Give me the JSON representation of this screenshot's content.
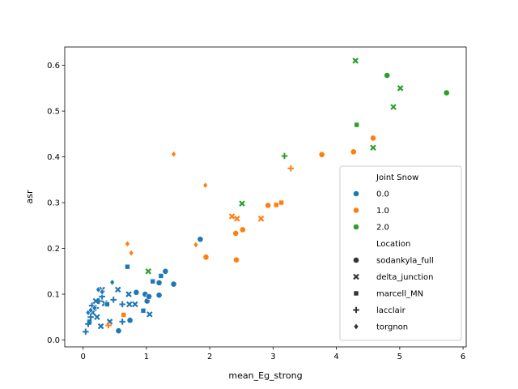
{
  "chart_data": {
    "type": "scatter",
    "xlabel": "mean_Eg_strong",
    "ylabel": "asr",
    "xlim": [
      -0.29,
      6.05
    ],
    "ylim": [
      -0.015,
      0.64
    ],
    "xticks": [
      "0",
      "1",
      "2",
      "3",
      "4",
      "5",
      "6"
    ],
    "xtick_values": [
      0,
      1,
      2,
      3,
      4,
      5,
      6
    ],
    "yticks": [
      "0.0",
      "0.1",
      "0.2",
      "0.3",
      "0.4",
      "0.5",
      "0.6"
    ],
    "ytick_values": [
      0,
      0.1,
      0.2,
      0.3,
      0.4,
      0.5,
      0.6
    ],
    "grid": false,
    "legend_position": "lower-right",
    "legend": {
      "hue_title": "Joint Snow",
      "hue_entries": [
        {
          "label": "0.0",
          "color": "#1f77b4"
        },
        {
          "label": "1.0",
          "color": "#ff7f0e"
        },
        {
          "label": "2.0",
          "color": "#2ca02c"
        }
      ],
      "style_title": "Location",
      "style_entries": [
        {
          "label": "sodankyla_full",
          "marker": "circle"
        },
        {
          "label": "delta_junction",
          "marker": "x"
        },
        {
          "label": "marcell_MN",
          "marker": "square"
        },
        {
          "label": "lacclair",
          "marker": "plus"
        },
        {
          "label": "torgnon",
          "marker": "diamond"
        }
      ]
    },
    "points": [
      {
        "x": 0.56,
        "y": 0.02,
        "hue": "0.0",
        "marker": "circle"
      },
      {
        "x": 0.74,
        "y": 0.043,
        "hue": "0.0",
        "marker": "circle"
      },
      {
        "x": 0.84,
        "y": 0.104,
        "hue": "0.0",
        "marker": "circle"
      },
      {
        "x": 0.98,
        "y": 0.1,
        "hue": "0.0",
        "marker": "circle"
      },
      {
        "x": 1.01,
        "y": 0.085,
        "hue": "0.0",
        "marker": "circle"
      },
      {
        "x": 1.04,
        "y": 0.095,
        "hue": "0.0",
        "marker": "circle"
      },
      {
        "x": 1.2,
        "y": 0.125,
        "hue": "0.0",
        "marker": "circle"
      },
      {
        "x": 1.2,
        "y": 0.098,
        "hue": "0.0",
        "marker": "circle"
      },
      {
        "x": 1.3,
        "y": 0.15,
        "hue": "0.0",
        "marker": "circle"
      },
      {
        "x": 1.43,
        "y": 0.122,
        "hue": "0.0",
        "marker": "circle"
      },
      {
        "x": 1.85,
        "y": 0.22,
        "hue": "0.0",
        "marker": "circle"
      },
      {
        "x": 1.94,
        "y": 0.181,
        "hue": "1.0",
        "marker": "circle"
      },
      {
        "x": 2.42,
        "y": 0.175,
        "hue": "1.0",
        "marker": "circle"
      },
      {
        "x": 2.41,
        "y": 0.233,
        "hue": "1.0",
        "marker": "circle"
      },
      {
        "x": 2.52,
        "y": 0.241,
        "hue": "1.0",
        "marker": "circle"
      },
      {
        "x": 2.92,
        "y": 0.294,
        "hue": "1.0",
        "marker": "circle"
      },
      {
        "x": 3.77,
        "y": 0.405,
        "hue": "1.0",
        "marker": "circle"
      },
      {
        "x": 4.27,
        "y": 0.411,
        "hue": "1.0",
        "marker": "circle"
      },
      {
        "x": 4.58,
        "y": 0.441,
        "hue": "1.0",
        "marker": "circle"
      },
      {
        "x": 4.8,
        "y": 0.578,
        "hue": "2.0",
        "marker": "circle"
      },
      {
        "x": 5.74,
        "y": 0.54,
        "hue": "2.0",
        "marker": "circle"
      },
      {
        "x": 0.15,
        "y": 0.06,
        "hue": "0.0",
        "marker": "x"
      },
      {
        "x": 0.2,
        "y": 0.085,
        "hue": "0.0",
        "marker": "x"
      },
      {
        "x": 0.22,
        "y": 0.05,
        "hue": "0.0",
        "marker": "x"
      },
      {
        "x": 0.28,
        "y": 0.03,
        "hue": "0.0",
        "marker": "x"
      },
      {
        "x": 0.3,
        "y": 0.11,
        "hue": "0.0",
        "marker": "x"
      },
      {
        "x": 0.34,
        "y": 0.08,
        "hue": "0.0",
        "marker": "x"
      },
      {
        "x": 0.42,
        "y": 0.04,
        "hue": "0.0",
        "marker": "x"
      },
      {
        "x": 0.55,
        "y": 0.11,
        "hue": "0.0",
        "marker": "x"
      },
      {
        "x": 0.72,
        "y": 0.1,
        "hue": "0.0",
        "marker": "x"
      },
      {
        "x": 0.73,
        "y": 0.078,
        "hue": "0.0",
        "marker": "x"
      },
      {
        "x": 0.82,
        "y": 0.078,
        "hue": "0.0",
        "marker": "x"
      },
      {
        "x": 1.05,
        "y": 0.056,
        "hue": "0.0",
        "marker": "x"
      },
      {
        "x": 2.35,
        "y": 0.27,
        "hue": "1.0",
        "marker": "x"
      },
      {
        "x": 2.43,
        "y": 0.265,
        "hue": "1.0",
        "marker": "x"
      },
      {
        "x": 2.81,
        "y": 0.265,
        "hue": "1.0",
        "marker": "x"
      },
      {
        "x": 2.51,
        "y": 0.298,
        "hue": "2.0",
        "marker": "x"
      },
      {
        "x": 1.03,
        "y": 0.15,
        "hue": "2.0",
        "marker": "x"
      },
      {
        "x": 4.3,
        "y": 0.61,
        "hue": "2.0",
        "marker": "x"
      },
      {
        "x": 5.01,
        "y": 0.55,
        "hue": "2.0",
        "marker": "x"
      },
      {
        "x": 4.9,
        "y": 0.509,
        "hue": "2.0",
        "marker": "x"
      },
      {
        "x": 4.58,
        "y": 0.42,
        "hue": "2.0",
        "marker": "x"
      },
      {
        "x": 0.1,
        "y": 0.04,
        "hue": "0.0",
        "marker": "square"
      },
      {
        "x": 0.38,
        "y": 0.078,
        "hue": "0.0",
        "marker": "square"
      },
      {
        "x": 0.7,
        "y": 0.16,
        "hue": "0.0",
        "marker": "square"
      },
      {
        "x": 0.95,
        "y": 0.064,
        "hue": "0.0",
        "marker": "square"
      },
      {
        "x": 1.1,
        "y": 0.128,
        "hue": "0.0",
        "marker": "square"
      },
      {
        "x": 1.23,
        "y": 0.14,
        "hue": "0.0",
        "marker": "square"
      },
      {
        "x": 0.64,
        "y": 0.055,
        "hue": "1.0",
        "marker": "square"
      },
      {
        "x": 3.05,
        "y": 0.295,
        "hue": "1.0",
        "marker": "square"
      },
      {
        "x": 3.13,
        "y": 0.3,
        "hue": "1.0",
        "marker": "square"
      },
      {
        "x": 4.32,
        "y": 0.47,
        "hue": "2.0",
        "marker": "square"
      },
      {
        "x": 0.04,
        "y": 0.018,
        "hue": "0.0",
        "marker": "plus"
      },
      {
        "x": 0.08,
        "y": 0.035,
        "hue": "0.0",
        "marker": "plus"
      },
      {
        "x": 0.12,
        "y": 0.05,
        "hue": "0.0",
        "marker": "plus"
      },
      {
        "x": 0.14,
        "y": 0.075,
        "hue": "0.0",
        "marker": "plus"
      },
      {
        "x": 0.2,
        "y": 0.07,
        "hue": "0.0",
        "marker": "plus"
      },
      {
        "x": 0.25,
        "y": 0.085,
        "hue": "0.0",
        "marker": "plus"
      },
      {
        "x": 0.3,
        "y": 0.095,
        "hue": "0.0",
        "marker": "plus"
      },
      {
        "x": 0.48,
        "y": 0.088,
        "hue": "0.0",
        "marker": "plus"
      },
      {
        "x": 0.62,
        "y": 0.078,
        "hue": "0.0",
        "marker": "plus"
      },
      {
        "x": 0.62,
        "y": 0.04,
        "hue": "0.0",
        "marker": "plus"
      },
      {
        "x": 0.4,
        "y": 0.032,
        "hue": "1.0",
        "marker": "plus"
      },
      {
        "x": 3.28,
        "y": 0.375,
        "hue": "1.0",
        "marker": "plus"
      },
      {
        "x": 3.18,
        "y": 0.402,
        "hue": "2.0",
        "marker": "plus"
      },
      {
        "x": 0.08,
        "y": 0.06,
        "hue": "0.0",
        "marker": "diamond"
      },
      {
        "x": 0.12,
        "y": 0.065,
        "hue": "0.0",
        "marker": "diamond"
      },
      {
        "x": 0.18,
        "y": 0.07,
        "hue": "0.0",
        "marker": "diamond"
      },
      {
        "x": 0.24,
        "y": 0.11,
        "hue": "0.0",
        "marker": "diamond"
      },
      {
        "x": 0.3,
        "y": 0.105,
        "hue": "0.0",
        "marker": "diamond"
      },
      {
        "x": 0.46,
        "y": 0.126,
        "hue": "0.0",
        "marker": "diamond"
      },
      {
        "x": 0.7,
        "y": 0.21,
        "hue": "1.0",
        "marker": "diamond"
      },
      {
        "x": 0.76,
        "y": 0.19,
        "hue": "1.0",
        "marker": "diamond"
      },
      {
        "x": 1.43,
        "y": 0.406,
        "hue": "1.0",
        "marker": "diamond"
      },
      {
        "x": 1.78,
        "y": 0.208,
        "hue": "1.0",
        "marker": "diamond"
      },
      {
        "x": 1.93,
        "y": 0.338,
        "hue": "1.0",
        "marker": "diamond"
      }
    ]
  }
}
